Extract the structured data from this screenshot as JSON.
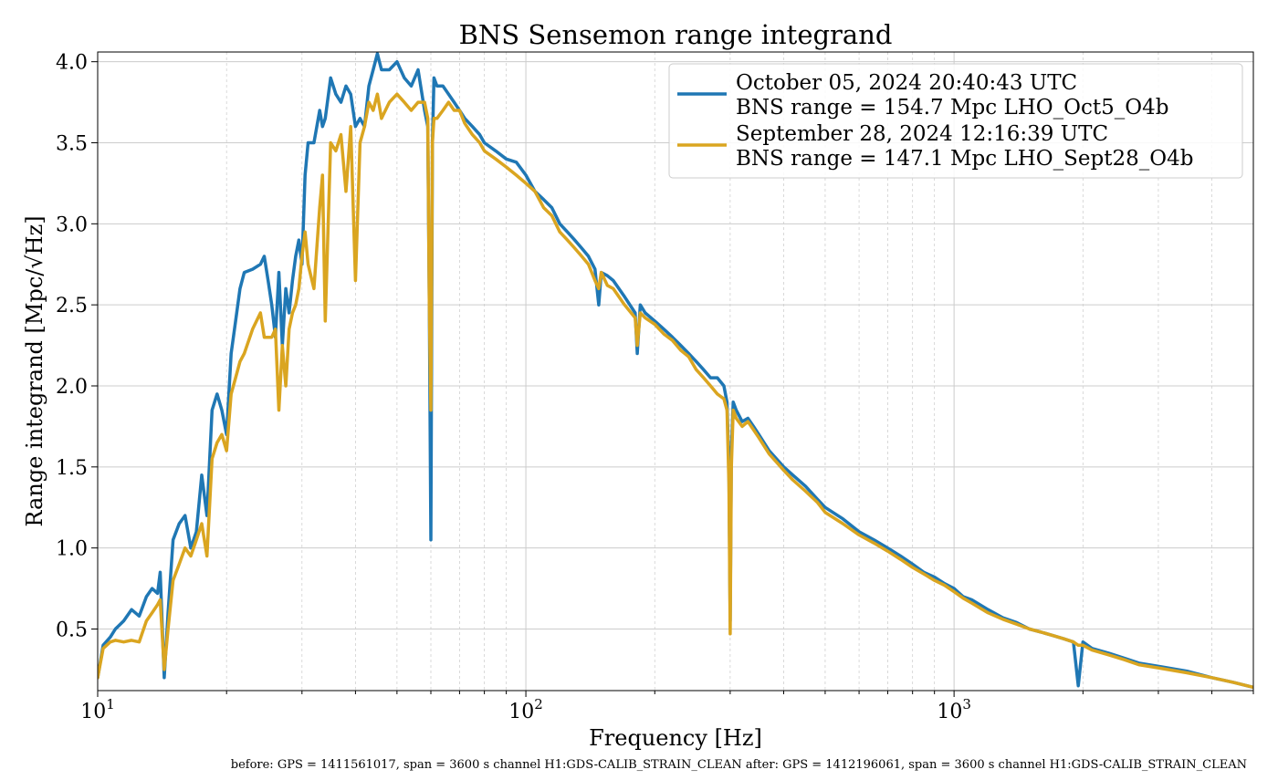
{
  "chart_data": {
    "type": "line",
    "title": "BNS Sensemon range integrand",
    "xlabel": "Frequency [Hz]",
    "ylabel": "Range integrand [Mpc/√Hz]",
    "xscale": "log",
    "xlim": [
      10,
      5000
    ],
    "ylim": [
      0.12,
      4.06
    ],
    "yticks": [
      {
        "value": 0.5,
        "label": "0.5"
      },
      {
        "value": 1.0,
        "label": "1.0"
      },
      {
        "value": 1.5,
        "label": "1.5"
      },
      {
        "value": 2.0,
        "label": "2.0"
      },
      {
        "value": 2.5,
        "label": "2.5"
      },
      {
        "value": 3.0,
        "label": "3.0"
      },
      {
        "value": 3.5,
        "label": "3.5"
      },
      {
        "value": 4.0,
        "label": "4.0"
      }
    ],
    "xticks": [
      {
        "value": 10,
        "base": "10",
        "exp": "1"
      },
      {
        "value": 100,
        "base": "10",
        "exp": "2"
      },
      {
        "value": 1000,
        "base": "10",
        "exp": "3"
      }
    ],
    "grid": true,
    "legend_position": "top-right",
    "series": [
      {
        "name": "October 05, 2024 20:40:43 UTC",
        "name2": "BNS range = 154.7 Mpc LHO_Oct5_O4b",
        "color": "#1f77b4",
        "x": [
          10,
          10.3,
          10.7,
          11,
          11.5,
          12,
          12.5,
          13,
          13.4,
          13.8,
          14,
          14.3,
          14.6,
          15,
          15.5,
          16,
          16.5,
          17,
          17.5,
          18,
          18.5,
          19,
          19.5,
          20,
          20.5,
          21,
          21.5,
          22,
          23,
          24,
          24.5,
          25,
          25.5,
          26,
          26.5,
          27,
          27.5,
          28,
          28.5,
          29,
          29.5,
          30,
          30.5,
          31,
          32,
          33,
          33.5,
          34,
          35,
          36,
          37,
          38,
          39,
          40,
          41,
          42,
          43,
          44,
          45,
          46,
          48,
          50,
          52,
          54,
          56,
          58,
          59,
          59.5,
          60,
          60.5,
          61,
          62,
          64,
          66,
          68,
          70,
          72,
          75,
          78,
          80,
          85,
          90,
          95,
          100,
          105,
          110,
          115,
          120,
          125,
          130,
          135,
          140,
          145,
          148,
          150,
          155,
          160,
          170,
          180,
          182,
          185,
          190,
          200,
          210,
          220,
          230,
          240,
          250,
          260,
          270,
          280,
          290,
          295,
          298,
          300,
          302,
          305,
          310,
          320,
          330,
          340,
          350,
          370,
          400,
          420,
          450,
          480,
          500,
          550,
          600,
          650,
          700,
          750,
          800,
          850,
          900,
          950,
          1000,
          1050,
          1100,
          1200,
          1300,
          1400,
          1500,
          1600,
          1700,
          1800,
          1900,
          1950,
          2000,
          2100,
          2300,
          2500,
          2700,
          3000,
          3500,
          4000,
          4500,
          5000
        ],
        "y": [
          0.2,
          0.4,
          0.45,
          0.5,
          0.55,
          0.62,
          0.58,
          0.7,
          0.75,
          0.72,
          0.85,
          0.2,
          0.6,
          1.05,
          1.15,
          1.2,
          1.0,
          1.1,
          1.45,
          1.2,
          1.85,
          1.95,
          1.85,
          1.7,
          2.2,
          2.4,
          2.6,
          2.7,
          2.72,
          2.75,
          2.8,
          2.65,
          2.5,
          2.3,
          2.7,
          2.25,
          2.6,
          2.45,
          2.65,
          2.8,
          2.9,
          2.75,
          3.3,
          3.5,
          3.5,
          3.7,
          3.6,
          3.65,
          3.9,
          3.8,
          3.75,
          3.85,
          3.8,
          3.6,
          3.65,
          3.6,
          3.85,
          3.95,
          4.05,
          3.95,
          3.95,
          4.0,
          3.9,
          3.85,
          3.95,
          3.7,
          3.6,
          2.5,
          1.05,
          3.5,
          3.9,
          3.85,
          3.85,
          3.8,
          3.75,
          3.7,
          3.65,
          3.6,
          3.55,
          3.5,
          3.45,
          3.4,
          3.38,
          3.3,
          3.2,
          3.15,
          3.1,
          3.0,
          2.95,
          2.9,
          2.85,
          2.8,
          2.72,
          2.5,
          2.7,
          2.68,
          2.65,
          2.55,
          2.45,
          2.2,
          2.5,
          2.45,
          2.4,
          2.35,
          2.3,
          2.25,
          2.2,
          2.15,
          2.1,
          2.05,
          2.05,
          2.0,
          1.9,
          1.5,
          0.55,
          1.6,
          1.9,
          1.85,
          1.78,
          1.8,
          1.75,
          1.7,
          1.6,
          1.5,
          1.45,
          1.38,
          1.3,
          1.25,
          1.18,
          1.1,
          1.05,
          1.0,
          0.95,
          0.9,
          0.85,
          0.82,
          0.78,
          0.75,
          0.7,
          0.68,
          0.62,
          0.57,
          0.54,
          0.5,
          0.48,
          0.46,
          0.44,
          0.42,
          0.15,
          0.42,
          0.38,
          0.35,
          0.32,
          0.29,
          0.27,
          0.24,
          0.2,
          0.17,
          0.14
        ]
      },
      {
        "name": "September 28, 2024 12:16:39 UTC",
        "name2": "BNS range = 147.1 Mpc LHO_Sept28_O4b",
        "color": "#daa520",
        "x": [
          10,
          10.3,
          10.7,
          11,
          11.5,
          12,
          12.5,
          13,
          13.4,
          13.8,
          14,
          14.3,
          14.6,
          15,
          15.5,
          16,
          16.5,
          17,
          17.5,
          18,
          18.5,
          19,
          19.5,
          20,
          20.5,
          21,
          21.5,
          22,
          23,
          24,
          24.5,
          25,
          25.5,
          26,
          26.5,
          27,
          27.5,
          28,
          28.5,
          29,
          29.5,
          30,
          30.5,
          31,
          32,
          33,
          33.5,
          34,
          35,
          36,
          37,
          38,
          39,
          40,
          41,
          42,
          43,
          44,
          45,
          46,
          48,
          50,
          52,
          54,
          56,
          58,
          59,
          59.5,
          60,
          60.5,
          61,
          62,
          64,
          66,
          68,
          70,
          72,
          75,
          78,
          80,
          85,
          90,
          95,
          100,
          105,
          110,
          115,
          120,
          125,
          130,
          135,
          140,
          145,
          148,
          150,
          155,
          160,
          170,
          180,
          182,
          185,
          190,
          200,
          210,
          220,
          230,
          240,
          250,
          260,
          270,
          280,
          290,
          295,
          298,
          300,
          302,
          305,
          310,
          320,
          330,
          340,
          350,
          370,
          400,
          420,
          450,
          480,
          500,
          550,
          600,
          650,
          700,
          750,
          800,
          850,
          900,
          950,
          1000,
          1050,
          1100,
          1200,
          1300,
          1400,
          1500,
          1600,
          1700,
          1800,
          1900,
          1950,
          2000,
          2100,
          2300,
          2500,
          2700,
          3000,
          3500,
          4000,
          4500,
          5000
        ],
        "y": [
          0.2,
          0.38,
          0.42,
          0.43,
          0.42,
          0.43,
          0.42,
          0.55,
          0.6,
          0.65,
          0.68,
          0.25,
          0.5,
          0.8,
          0.9,
          1.0,
          0.95,
          1.05,
          1.15,
          0.95,
          1.55,
          1.65,
          1.7,
          1.6,
          1.95,
          2.05,
          2.15,
          2.2,
          2.35,
          2.45,
          2.3,
          2.3,
          2.3,
          2.35,
          1.85,
          2.25,
          2.0,
          2.35,
          2.45,
          2.5,
          2.6,
          2.8,
          2.95,
          2.75,
          2.6,
          3.1,
          3.3,
          2.4,
          3.5,
          3.45,
          3.55,
          3.2,
          3.6,
          2.65,
          3.5,
          3.6,
          3.75,
          3.7,
          3.8,
          3.65,
          3.75,
          3.8,
          3.75,
          3.7,
          3.75,
          3.75,
          3.65,
          2.5,
          1.85,
          3.5,
          3.65,
          3.65,
          3.7,
          3.75,
          3.7,
          3.7,
          3.62,
          3.55,
          3.5,
          3.45,
          3.4,
          3.35,
          3.3,
          3.25,
          3.2,
          3.1,
          3.05,
          2.95,
          2.9,
          2.85,
          2.8,
          2.75,
          2.65,
          2.6,
          2.7,
          2.62,
          2.6,
          2.5,
          2.42,
          2.25,
          2.45,
          2.42,
          2.38,
          2.32,
          2.28,
          2.22,
          2.18,
          2.1,
          2.05,
          2.0,
          1.95,
          1.92,
          1.85,
          1.4,
          0.47,
          1.5,
          1.85,
          1.8,
          1.75,
          1.78,
          1.73,
          1.68,
          1.58,
          1.48,
          1.42,
          1.35,
          1.28,
          1.22,
          1.15,
          1.08,
          1.03,
          0.98,
          0.93,
          0.88,
          0.84,
          0.8,
          0.77,
          0.73,
          0.69,
          0.66,
          0.6,
          0.56,
          0.53,
          0.5,
          0.48,
          0.46,
          0.44,
          0.42,
          0.4,
          0.4,
          0.37,
          0.34,
          0.31,
          0.28,
          0.26,
          0.23,
          0.2,
          0.17,
          0.14
        ]
      }
    ],
    "footnote": "before: GPS = 1411561017, span = 3600 s channel H1:GDS-CALIB_STRAIN_CLEAN after: GPS = 1412196061, span = 3600 s channel H1:GDS-CALIB_STRAIN_CLEAN"
  }
}
